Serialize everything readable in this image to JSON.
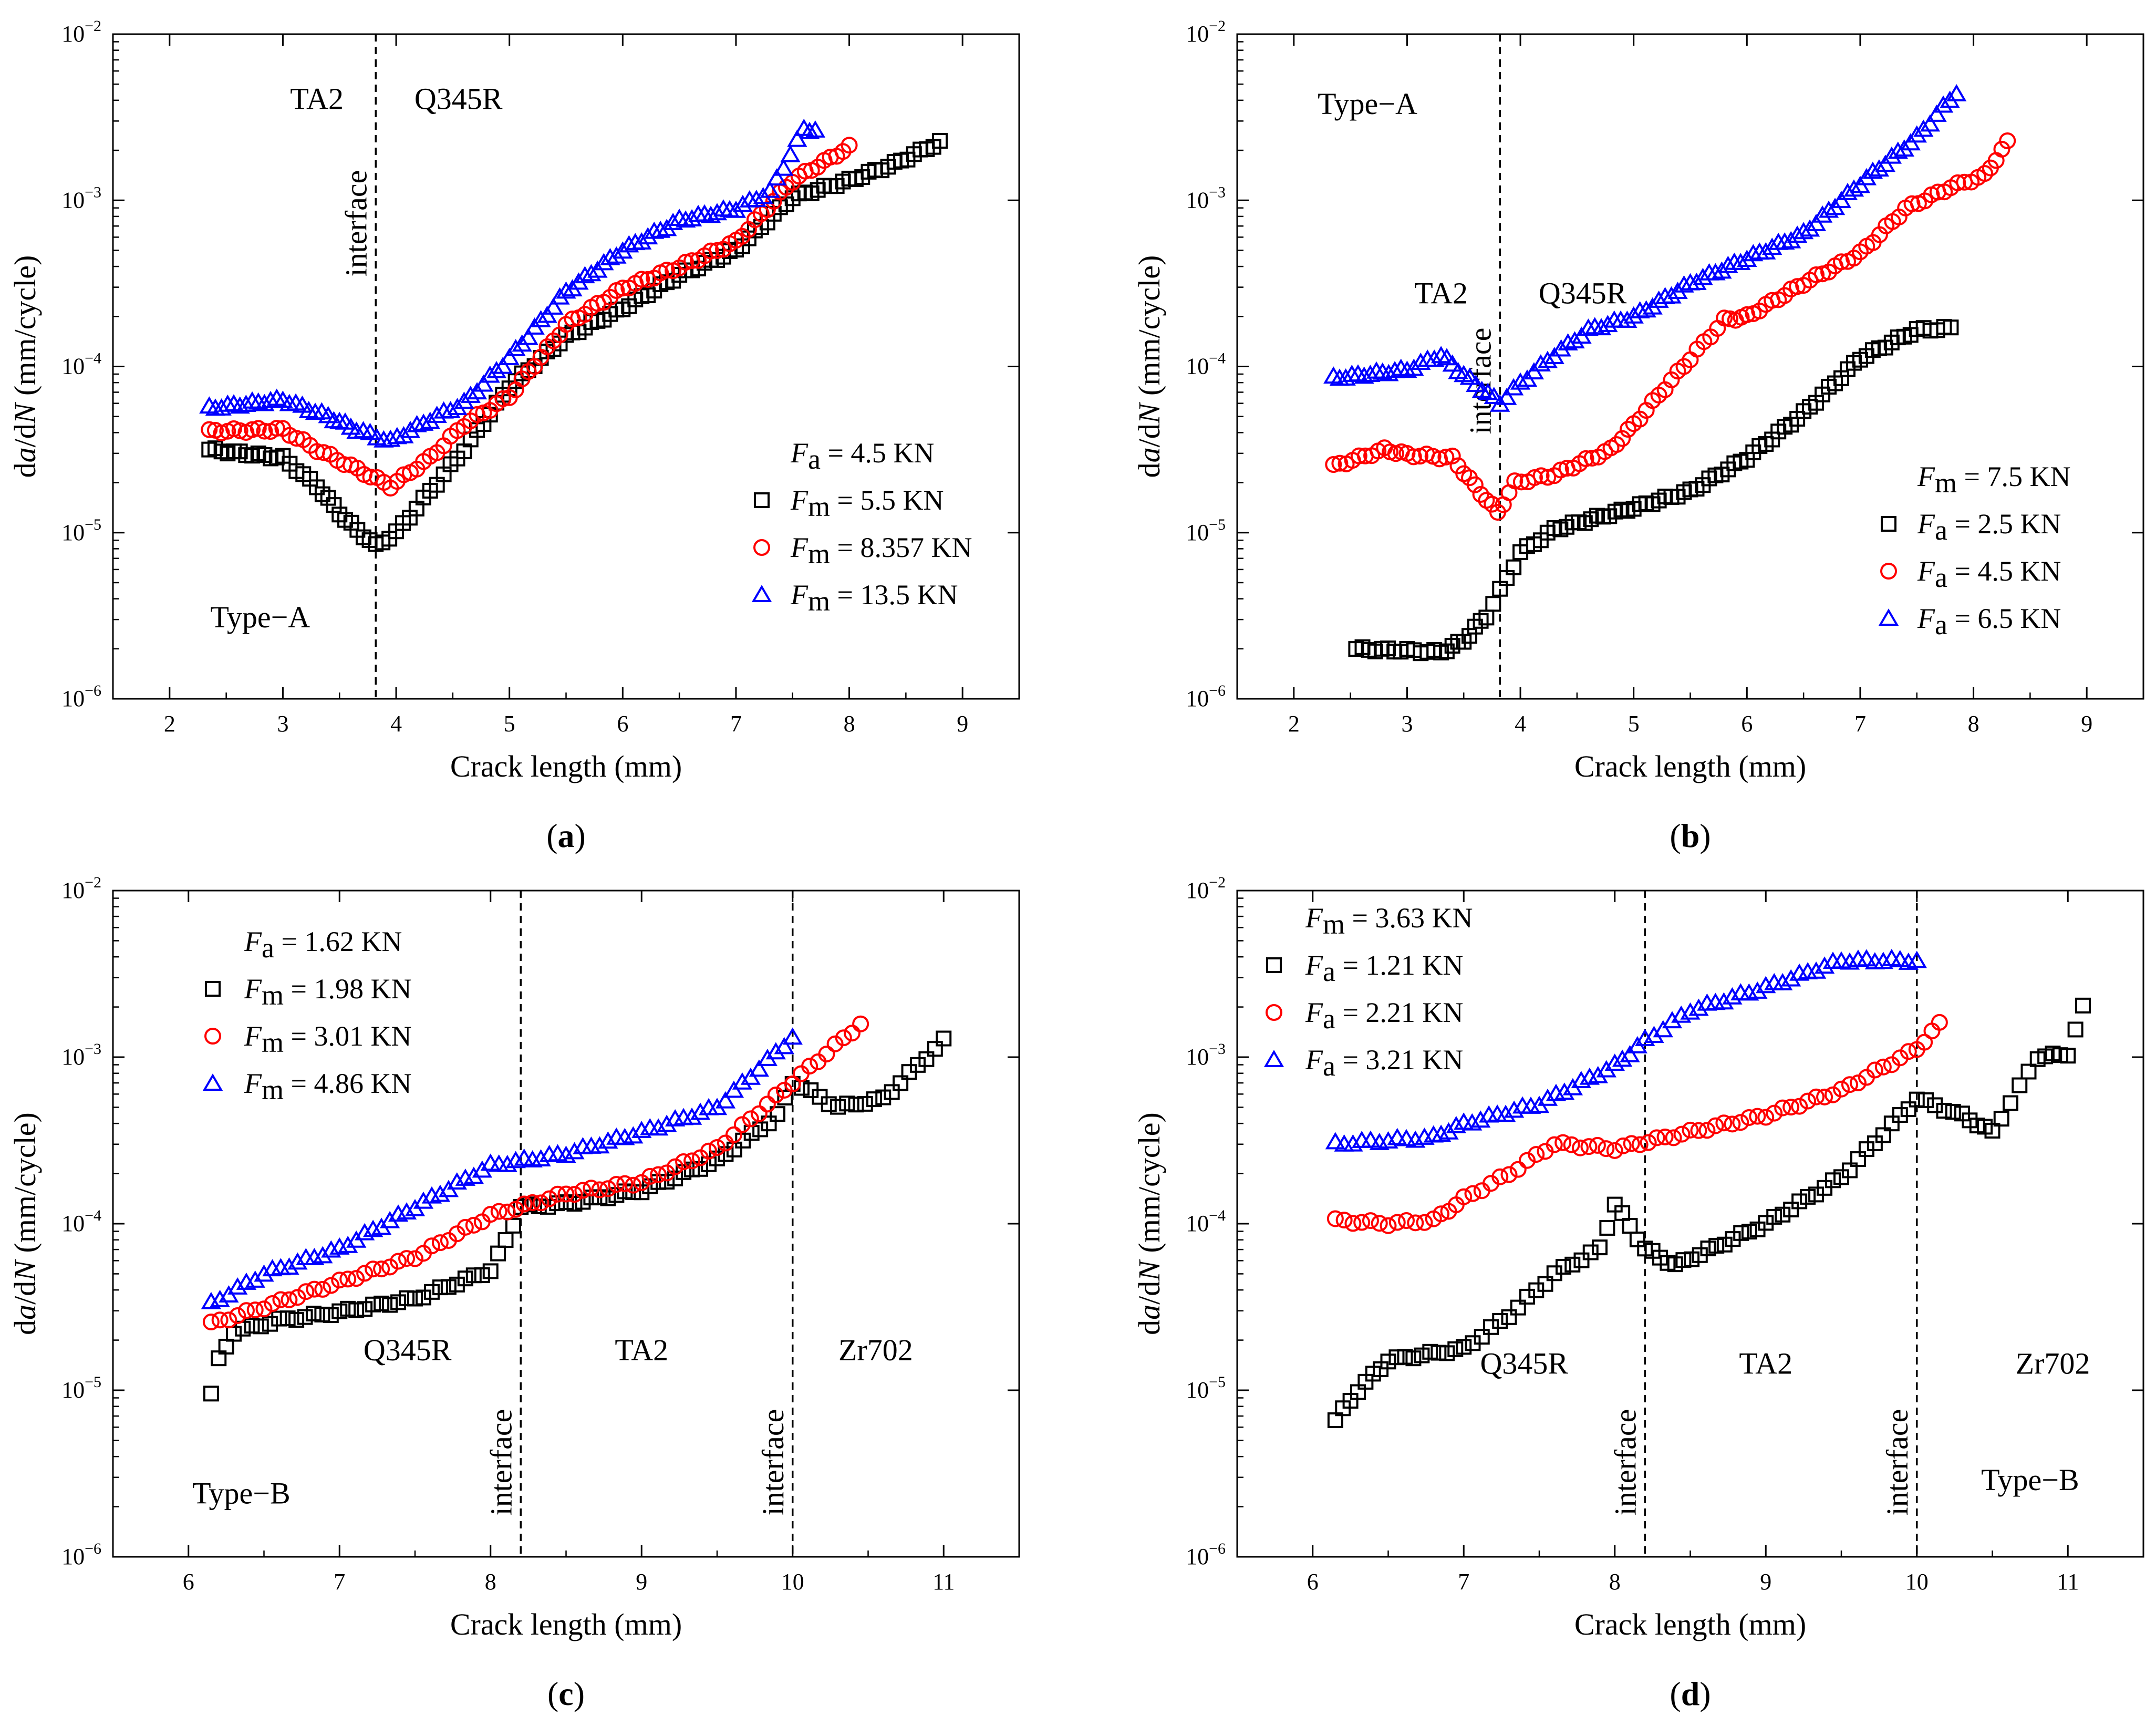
{
  "chart_data": [
    {
      "panel": "a",
      "type": "scatter",
      "xlabel": "Crack length (mm)",
      "ylabel": "da/dN (mm/cycle)",
      "xlim": [
        1.5,
        9.5
      ],
      "ylim_log10": [
        -6,
        -2
      ],
      "xticks": [
        2,
        3,
        4,
        5,
        6,
        7,
        8,
        9
      ],
      "yticks": [
        -6,
        -5,
        -4,
        -3,
        -2
      ],
      "interfaces": [
        3.82
      ],
      "annotations": [
        {
          "text": "TA2",
          "x": 3.3,
          "y": -2.45
        },
        {
          "text": "Q345R",
          "x": 4.55,
          "y": -2.45
        },
        {
          "text": "Type−A",
          "x": 2.8,
          "y": -5.57
        }
      ],
      "interface_label": "interface",
      "legend": {
        "title_sym": "F",
        "title_sub": "a",
        "title_val": " = 4.5 KN",
        "sym": "F",
        "sub": "m",
        "position": "lower-right"
      },
      "series": [
        {
          "name": "5.5 KN",
          "marker": "square",
          "color": "#000000",
          "points": [
            [
              2.35,
              -4.5
            ],
            [
              3.0,
              -4.55
            ],
            [
              3.3,
              -4.72
            ],
            [
              3.55,
              -4.92
            ],
            [
              3.82,
              -5.08
            ],
            [
              4.0,
              -5.0
            ],
            [
              4.3,
              -4.75
            ],
            [
              4.6,
              -4.5
            ],
            [
              5.0,
              -4.12
            ],
            [
              5.5,
              -3.82
            ],
            [
              6.0,
              -3.65
            ],
            [
              6.5,
              -3.45
            ],
            [
              7.0,
              -3.3
            ],
            [
              7.5,
              -2.98
            ],
            [
              8.0,
              -2.88
            ],
            [
              8.4,
              -2.78
            ],
            [
              8.8,
              -2.65
            ]
          ]
        },
        {
          "name": "8.357 KN",
          "marker": "circle",
          "color": "#ff0000",
          "points": [
            [
              2.35,
              -4.39
            ],
            [
              3.0,
              -4.38
            ],
            [
              3.3,
              -4.5
            ],
            [
              3.6,
              -4.6
            ],
            [
              3.95,
              -4.72
            ],
            [
              4.3,
              -4.55
            ],
            [
              4.6,
              -4.35
            ],
            [
              5.0,
              -4.18
            ],
            [
              5.5,
              -3.75
            ],
            [
              6.0,
              -3.53
            ],
            [
              6.5,
              -3.4
            ],
            [
              7.0,
              -3.25
            ],
            [
              7.5,
              -2.88
            ],
            [
              8.0,
              -2.68
            ]
          ]
        },
        {
          "name": "13.5 KN",
          "marker": "triangle",
          "color": "#0000ff",
          "points": [
            [
              2.35,
              -4.25
            ],
            [
              3.0,
              -4.2
            ],
            [
              3.4,
              -4.3
            ],
            [
              3.65,
              -4.38
            ],
            [
              3.95,
              -4.45
            ],
            [
              4.3,
              -4.32
            ],
            [
              4.6,
              -4.22
            ],
            [
              5.0,
              -3.95
            ],
            [
              5.5,
              -3.55
            ],
            [
              6.0,
              -3.3
            ],
            [
              6.5,
              -3.12
            ],
            [
              7.0,
              -3.05
            ],
            [
              7.3,
              -2.95
            ],
            [
              7.6,
              -2.57
            ],
            [
              7.7,
              -2.58
            ]
          ]
        }
      ]
    },
    {
      "panel": "b",
      "type": "scatter",
      "xlabel": "Crack length (mm)",
      "ylabel": "da/dN (mm/cycle)",
      "xlim": [
        1.5,
        9.5
      ],
      "ylim_log10": [
        -6,
        -2
      ],
      "xticks": [
        2,
        3,
        4,
        5,
        6,
        7,
        8,
        9
      ],
      "yticks": [
        -6,
        -5,
        -4,
        -3,
        -2
      ],
      "interfaces": [
        3.82
      ],
      "annotations": [
        {
          "text": "Type−A",
          "x": 2.65,
          "y": -2.48
        },
        {
          "text": "TA2",
          "x": 3.3,
          "y": -3.62
        },
        {
          "text": "Q345R",
          "x": 4.55,
          "y": -3.62
        }
      ],
      "interface_label": "interface",
      "legend": {
        "title_sym": "F",
        "title_sub": "m",
        "title_val": " = 7.5 KN",
        "sym": "F",
        "sub": "a",
        "position": "lower-right"
      },
      "series": [
        {
          "name": "2.5 KN",
          "marker": "square",
          "color": "#000000",
          "points": [
            [
              2.55,
              -5.7
            ],
            [
              3.0,
              -5.71
            ],
            [
              3.3,
              -5.72
            ],
            [
              3.5,
              -5.65
            ],
            [
              3.7,
              -5.5
            ],
            [
              3.82,
              -5.35
            ],
            [
              4.0,
              -5.12
            ],
            [
              4.3,
              -4.98
            ],
            [
              5.0,
              -4.85
            ],
            [
              5.5,
              -4.75
            ],
            [
              6.0,
              -4.55
            ],
            [
              6.5,
              -4.28
            ],
            [
              7.0,
              -3.95
            ],
            [
              7.5,
              -3.78
            ],
            [
              7.8,
              -3.77
            ]
          ]
        },
        {
          "name": "4.5 KN",
          "marker": "circle",
          "color": "#ff0000",
          "points": [
            [
              2.35,
              -4.6
            ],
            [
              2.8,
              -4.5
            ],
            [
              3.0,
              -4.53
            ],
            [
              3.4,
              -4.55
            ],
            [
              3.6,
              -4.72
            ],
            [
              3.8,
              -4.88
            ],
            [
              3.95,
              -4.7
            ],
            [
              4.3,
              -4.65
            ],
            [
              4.8,
              -4.5
            ],
            [
              5.0,
              -4.35
            ],
            [
              5.5,
              -3.95
            ],
            [
              5.8,
              -3.72
            ],
            [
              6.0,
              -3.7
            ],
            [
              6.5,
              -3.5
            ],
            [
              7.0,
              -3.32
            ],
            [
              7.4,
              -3.05
            ],
            [
              7.8,
              -2.92
            ],
            [
              8.1,
              -2.85
            ],
            [
              8.3,
              -2.65
            ]
          ]
        },
        {
          "name": "6.5 KN",
          "marker": "triangle",
          "color": "#0000ff",
          "points": [
            [
              2.35,
              -4.07
            ],
            [
              3.0,
              -4.02
            ],
            [
              3.3,
              -3.93
            ],
            [
              3.5,
              -4.05
            ],
            [
              3.82,
              -4.22
            ],
            [
              4.0,
              -4.1
            ],
            [
              4.3,
              -3.93
            ],
            [
              4.6,
              -3.78
            ],
            [
              5.0,
              -3.7
            ],
            [
              5.5,
              -3.5
            ],
            [
              6.0,
              -3.35
            ],
            [
              6.5,
              -3.2
            ],
            [
              7.0,
              -2.9
            ],
            [
              7.5,
              -2.62
            ],
            [
              7.85,
              -2.35
            ]
          ]
        }
      ]
    },
    {
      "panel": "c",
      "type": "scatter",
      "xlabel": "Crack length (mm)",
      "ylabel": "da/dN (mm/cycle)",
      "xlim": [
        5.5,
        11.5
      ],
      "ylim_log10": [
        -6,
        -2
      ],
      "xticks": [
        6,
        7,
        8,
        9,
        10,
        11
      ],
      "yticks": [
        -6,
        -5,
        -4,
        -3,
        -2
      ],
      "interfaces": [
        8.2,
        10.0
      ],
      "annotations": [
        {
          "text": "Q345R",
          "x": 7.45,
          "y": -4.82
        },
        {
          "text": "TA2",
          "x": 9.0,
          "y": -4.82
        },
        {
          "text": "Zr702",
          "x": 10.55,
          "y": -4.82
        },
        {
          "text": "Type−B",
          "x": 6.35,
          "y": -5.68
        }
      ],
      "interface_label": "interface",
      "legend": {
        "title_sym": "F",
        "title_sub": "a",
        "title_val": " = 1.62 KN",
        "sym": "F",
        "sub": "m",
        "position": "upper-left"
      },
      "series": [
        {
          "name": "1.98 KN",
          "marker": "square",
          "color": "#000000",
          "points": [
            [
              6.15,
              -5.02
            ],
            [
              6.2,
              -4.82
            ],
            [
              6.3,
              -4.65
            ],
            [
              6.6,
              -4.58
            ],
            [
              7.0,
              -4.53
            ],
            [
              7.5,
              -4.45
            ],
            [
              8.0,
              -4.28
            ],
            [
              8.1,
              -4.1
            ],
            [
              8.2,
              -3.9
            ],
            [
              8.5,
              -3.88
            ],
            [
              9.0,
              -3.8
            ],
            [
              9.5,
              -3.62
            ],
            [
              9.9,
              -3.35
            ],
            [
              10.0,
              -3.15
            ],
            [
              10.3,
              -3.3
            ],
            [
              10.6,
              -3.25
            ],
            [
              11.0,
              -2.9
            ]
          ]
        },
        {
          "name": "3.01 KN",
          "marker": "circle",
          "color": "#ff0000",
          "points": [
            [
              6.15,
              -4.6
            ],
            [
              6.5,
              -4.5
            ],
            [
              7.0,
              -4.35
            ],
            [
              7.5,
              -4.2
            ],
            [
              8.0,
              -3.95
            ],
            [
              8.5,
              -3.82
            ],
            [
              9.0,
              -3.75
            ],
            [
              9.5,
              -3.55
            ],
            [
              10.0,
              -3.15
            ],
            [
              10.45,
              -2.8
            ]
          ]
        },
        {
          "name": "4.86 KN",
          "marker": "triangle",
          "color": "#0000ff",
          "points": [
            [
              6.15,
              -4.48
            ],
            [
              6.5,
              -4.3
            ],
            [
              7.0,
              -4.15
            ],
            [
              7.5,
              -3.9
            ],
            [
              8.0,
              -3.65
            ],
            [
              8.5,
              -3.58
            ],
            [
              9.0,
              -3.45
            ],
            [
              9.5,
              -3.3
            ],
            [
              10.0,
              -2.88
            ]
          ]
        }
      ]
    },
    {
      "panel": "d",
      "type": "scatter",
      "xlabel": "Crack length (mm)",
      "ylabel": "da/dN (mm/cycle)",
      "xlim": [
        5.5,
        11.5
      ],
      "ylim_log10": [
        -6,
        -2
      ],
      "xticks": [
        6,
        7,
        8,
        9,
        10,
        11
      ],
      "yticks": [
        -6,
        -5,
        -4,
        -3,
        -2
      ],
      "interfaces": [
        8.2,
        10.0
      ],
      "annotations": [
        {
          "text": "Q345R",
          "x": 7.4,
          "y": -4.9
        },
        {
          "text": "TA2",
          "x": 9.0,
          "y": -4.9
        },
        {
          "text": "Zr702",
          "x": 10.9,
          "y": -4.9
        },
        {
          "text": "Type−B",
          "x": 10.75,
          "y": -5.6
        }
      ],
      "interface_label": "interface",
      "legend": {
        "title_sym": "F",
        "title_sub": "m",
        "title_val": " = 3.63 KN",
        "sym": "F",
        "sub": "a",
        "position": "upper-left"
      },
      "series": [
        {
          "name": "1.21 KN",
          "marker": "square",
          "color": "#000000",
          "points": [
            [
              6.15,
              -5.18
            ],
            [
              6.3,
              -5.0
            ],
            [
              6.5,
              -4.82
            ],
            [
              7.0,
              -4.75
            ],
            [
              7.3,
              -4.55
            ],
            [
              7.6,
              -4.3
            ],
            [
              7.9,
              -4.15
            ],
            [
              8.0,
              -3.88
            ],
            [
              8.2,
              -4.15
            ],
            [
              8.4,
              -4.25
            ],
            [
              9.0,
              -4.0
            ],
            [
              9.5,
              -3.72
            ],
            [
              10.0,
              -3.25
            ],
            [
              10.3,
              -3.35
            ],
            [
              10.5,
              -3.45
            ],
            [
              10.8,
              -3.0
            ],
            [
              11.0,
              -2.98
            ],
            [
              11.1,
              -2.7
            ]
          ]
        },
        {
          "name": "2.21 KN",
          "marker": "circle",
          "color": "#ff0000",
          "points": [
            [
              6.15,
              -3.98
            ],
            [
              6.5,
              -4.0
            ],
            [
              6.8,
              -3.98
            ],
            [
              7.0,
              -3.85
            ],
            [
              7.3,
              -3.7
            ],
            [
              7.6,
              -3.52
            ],
            [
              8.0,
              -3.55
            ],
            [
              8.5,
              -3.45
            ],
            [
              9.0,
              -3.35
            ],
            [
              9.5,
              -3.2
            ],
            [
              10.0,
              -2.95
            ],
            [
              10.15,
              -2.8
            ]
          ]
        },
        {
          "name": "3.21 KN",
          "marker": "triangle",
          "color": "#0000ff",
          "points": [
            [
              6.15,
              -3.52
            ],
            [
              6.5,
              -3.5
            ],
            [
              6.8,
              -3.48
            ],
            [
              7.0,
              -3.4
            ],
            [
              7.5,
              -3.28
            ],
            [
              8.0,
              -3.05
            ],
            [
              8.2,
              -2.9
            ],
            [
              8.5,
              -2.72
            ],
            [
              9.0,
              -2.58
            ],
            [
              9.5,
              -2.42
            ],
            [
              10.0,
              -2.42
            ]
          ]
        }
      ]
    }
  ],
  "panel_labels": [
    "(a)",
    "(b)",
    "(c)",
    "(d)"
  ]
}
